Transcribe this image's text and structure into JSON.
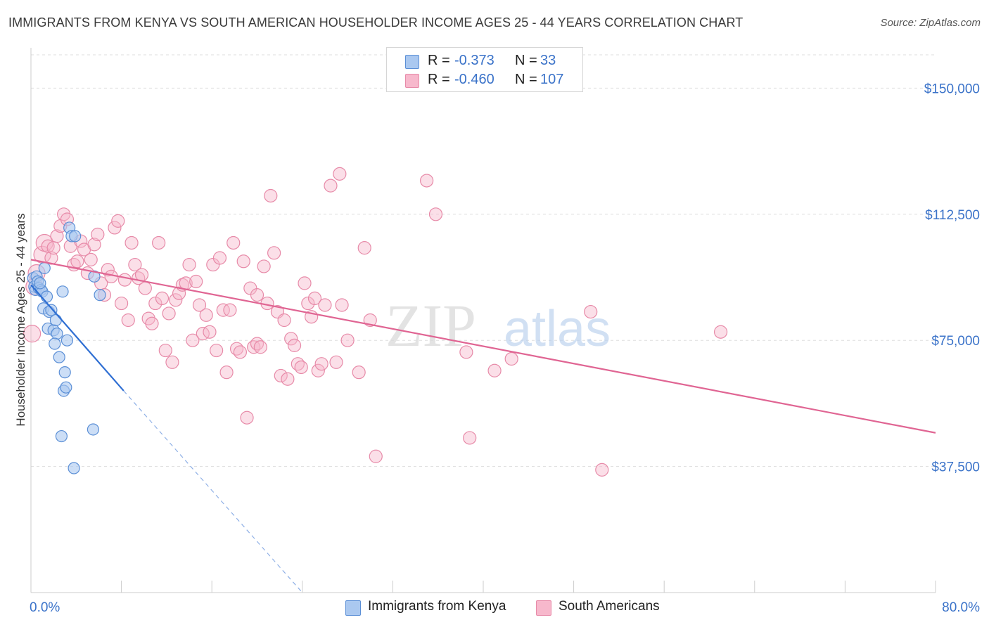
{
  "title": "IMMIGRANTS FROM KENYA VS SOUTH AMERICAN HOUSEHOLDER INCOME AGES 25 - 44 YEARS CORRELATION CHART",
  "source": "Source: ZipAtlas.com",
  "watermark": {
    "zip": "ZIP",
    "atlas": "atlas"
  },
  "legend_top": {
    "rows": [
      {
        "r_label": "R =",
        "r_value": "-0.373",
        "n_label": "N =",
        "n_value": "33"
      },
      {
        "r_label": "R =",
        "r_value": "-0.460",
        "n_label": "N =",
        "n_value": "107"
      }
    ]
  },
  "legend_bottom": {
    "items": [
      "Immigrants from Kenya",
      "South Americans"
    ]
  },
  "colors": {
    "kenya_fill": "#aac8f0",
    "kenya_stroke": "#5b8fd6",
    "kenya_line": "#2f6fd3",
    "south_fill": "#f7b8cc",
    "south_stroke": "#e78aa8",
    "south_line": "#e06593",
    "axis_text": "#3b73c9",
    "grid": "#dddddd"
  },
  "chart_data": {
    "type": "scatter",
    "title": "IMMIGRANTS FROM KENYA VS SOUTH AMERICAN HOUSEHOLDER INCOME AGES 25 - 44 YEARS CORRELATION CHART",
    "xlabel": "",
    "ylabel": "Householder Income Ages 25 - 44 years",
    "xlim": [
      0,
      80
    ],
    "ylim": [
      0,
      162000
    ],
    "x_tick_labels": [
      "0.0%",
      "80.0%"
    ],
    "y_ticks": [
      37500,
      75000,
      112500,
      150000
    ],
    "y_tick_labels": [
      "$37,500",
      "$75,000",
      "$112,500",
      "$150,000"
    ],
    "grid": true,
    "legend_position": "top-center",
    "series": [
      {
        "name": "Immigrants from Kenya",
        "R": -0.373,
        "N": 33,
        "trend": {
          "x": [
            0,
            8.2
          ],
          "y": [
            91500,
            60000
          ]
        },
        "trend_dashed": {
          "x": [
            8.2,
            24
          ],
          "y": [
            60000,
            0
          ]
        },
        "points": [
          [
            0.2,
            93500
          ],
          [
            0.3,
            91000
          ],
          [
            0.4,
            90000
          ],
          [
            0.5,
            94000
          ],
          [
            0.6,
            92500
          ],
          [
            0.7,
            90500
          ],
          [
            0.9,
            90000
          ],
          [
            1.0,
            89500
          ],
          [
            1.2,
            96500
          ],
          [
            1.1,
            84500
          ],
          [
            1.4,
            88000
          ],
          [
            1.6,
            83500
          ],
          [
            1.8,
            84000
          ],
          [
            1.5,
            78500
          ],
          [
            2.0,
            78000
          ],
          [
            2.3,
            77000
          ],
          [
            2.1,
            74000
          ],
          [
            2.5,
            70000
          ],
          [
            2.2,
            81000
          ],
          [
            2.8,
            89500
          ],
          [
            3.0,
            65500
          ],
          [
            3.2,
            75000
          ],
          [
            3.4,
            108500
          ],
          [
            3.6,
            106000
          ],
          [
            2.9,
            60000
          ],
          [
            3.1,
            61000
          ],
          [
            2.7,
            46500
          ],
          [
            5.6,
            94000
          ],
          [
            6.1,
            88500
          ],
          [
            5.5,
            48500
          ],
          [
            3.8,
            37000
          ],
          [
            3.9,
            106000
          ],
          [
            0.8,
            92000
          ]
        ]
      },
      {
        "name": "South Americans",
        "R": -0.46,
        "N": 107,
        "trend": {
          "x": [
            0,
            80
          ],
          "y": [
            99000,
            47500
          ]
        },
        "points": [
          [
            0.1,
            77000
          ],
          [
            0.3,
            91000
          ],
          [
            0.5,
            95000
          ],
          [
            1.0,
            100500
          ],
          [
            1.2,
            104000
          ],
          [
            1.5,
            103000
          ],
          [
            1.8,
            99500
          ],
          [
            2.0,
            102500
          ],
          [
            2.3,
            106000
          ],
          [
            2.6,
            109000
          ],
          [
            2.9,
            112500
          ],
          [
            3.2,
            111000
          ],
          [
            3.5,
            103000
          ],
          [
            3.8,
            97500
          ],
          [
            4.1,
            98500
          ],
          [
            4.4,
            104500
          ],
          [
            4.7,
            102000
          ],
          [
            5.0,
            95000
          ],
          [
            5.3,
            99000
          ],
          [
            5.6,
            103500
          ],
          [
            5.9,
            106500
          ],
          [
            6.2,
            92000
          ],
          [
            6.5,
            88500
          ],
          [
            6.8,
            96000
          ],
          [
            7.1,
            94000
          ],
          [
            7.4,
            108500
          ],
          [
            7.7,
            110500
          ],
          [
            8.0,
            86000
          ],
          [
            8.3,
            93000
          ],
          [
            8.6,
            81000
          ],
          [
            8.9,
            104000
          ],
          [
            9.2,
            97500
          ],
          [
            9.5,
            93500
          ],
          [
            9.8,
            94500
          ],
          [
            10.1,
            90500
          ],
          [
            10.4,
            81500
          ],
          [
            10.7,
            80000
          ],
          [
            11.0,
            86000
          ],
          [
            11.3,
            104000
          ],
          [
            11.6,
            87500
          ],
          [
            11.9,
            72000
          ],
          [
            12.2,
            83000
          ],
          [
            12.5,
            68500
          ],
          [
            12.8,
            87000
          ],
          [
            13.1,
            89000
          ],
          [
            13.4,
            91500
          ],
          [
            13.7,
            92000
          ],
          [
            14.0,
            97500
          ],
          [
            14.3,
            75000
          ],
          [
            14.6,
            92500
          ],
          [
            14.9,
            85500
          ],
          [
            15.2,
            77000
          ],
          [
            15.5,
            82500
          ],
          [
            15.8,
            77500
          ],
          [
            16.1,
            97500
          ],
          [
            16.4,
            72000
          ],
          [
            16.7,
            99500
          ],
          [
            17.0,
            84000
          ],
          [
            17.3,
            65500
          ],
          [
            17.6,
            84000
          ],
          [
            17.9,
            104000
          ],
          [
            18.2,
            72500
          ],
          [
            18.5,
            71500
          ],
          [
            18.8,
            98500
          ],
          [
            19.1,
            52000
          ],
          [
            19.4,
            90500
          ],
          [
            19.7,
            73000
          ],
          [
            20.0,
            74000
          ],
          [
            20.3,
            73000
          ],
          [
            20.6,
            97000
          ],
          [
            20.9,
            86000
          ],
          [
            21.2,
            118000
          ],
          [
            21.5,
            101000
          ],
          [
            21.8,
            83500
          ],
          [
            22.1,
            64500
          ],
          [
            22.4,
            81000
          ],
          [
            22.7,
            63500
          ],
          [
            23.0,
            75500
          ],
          [
            23.3,
            73500
          ],
          [
            23.6,
            68000
          ],
          [
            23.9,
            67000
          ],
          [
            24.2,
            92000
          ],
          [
            24.5,
            86000
          ],
          [
            24.8,
            82000
          ],
          [
            25.1,
            87500
          ],
          [
            25.4,
            66000
          ],
          [
            25.7,
            68000
          ],
          [
            26.0,
            85500
          ],
          [
            26.5,
            121000
          ],
          [
            27.0,
            68500
          ],
          [
            27.3,
            124500
          ],
          [
            27.5,
            85500
          ],
          [
            28.0,
            75000
          ],
          [
            29.0,
            65500
          ],
          [
            29.5,
            102500
          ],
          [
            30.0,
            81000
          ],
          [
            30.5,
            40500
          ],
          [
            35.0,
            122500
          ],
          [
            35.8,
            112500
          ],
          [
            38.5,
            71500
          ],
          [
            38.8,
            46000
          ],
          [
            41.0,
            66000
          ],
          [
            42.5,
            69500
          ],
          [
            49.5,
            83500
          ],
          [
            50.5,
            36500
          ],
          [
            61.0,
            77500
          ],
          [
            20.0,
            88500
          ]
        ]
      }
    ]
  }
}
